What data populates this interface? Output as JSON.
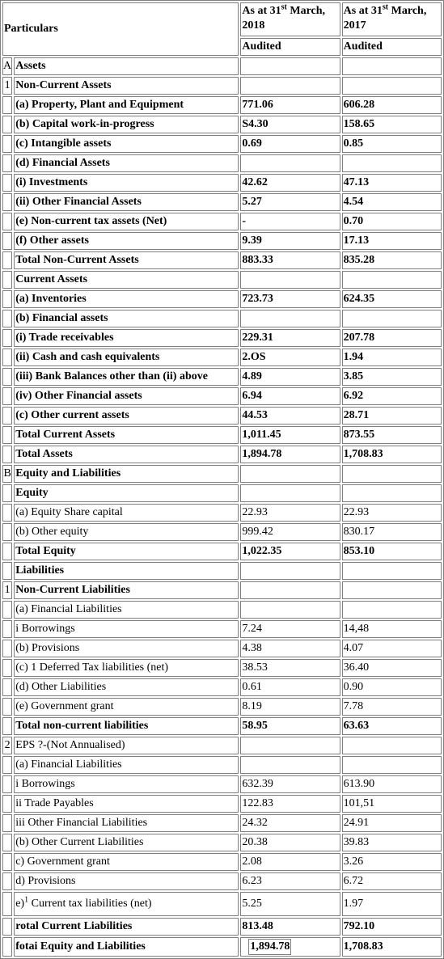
{
  "header": {
    "particulars": "Particulars",
    "col1_prefix": "As at 31",
    "col1_sup": "st",
    "col1_suffix": " March, 2018",
    "col2_prefix": "As at 31",
    "col2_sup": "st",
    "col2_suffix": " March, 2017",
    "audited1": "Audited",
    "audited2": "Audited"
  },
  "rows": [
    {
      "sr": "A",
      "label": "Assets",
      "v1": "",
      "v2": "",
      "bold": true
    },
    {
      "sr": "1",
      "label": "Non-Current Assets",
      "v1": "",
      "v2": "",
      "bold": true
    },
    {
      "sr": "",
      "label": "(a) Property, Plant and Equipment",
      "v1": "771.06",
      "v2": "606.28",
      "bold": true
    },
    {
      "sr": "",
      "label": "(b) Capital work-in-progress",
      "v1": "S4.30",
      "v2": "158.65",
      "bold": true
    },
    {
      "sr": "",
      "label": "(c) Intangible assets",
      "v1": "0.69",
      "v2": "0.85",
      "bold": true
    },
    {
      "sr": "",
      "label": "(d) Financial Assets",
      "v1": "",
      "v2": "",
      "bold": true
    },
    {
      "sr": "",
      "label": "(i) Investments",
      "v1": "42.62",
      "v2": "47.13",
      "bold": true
    },
    {
      "sr": "",
      "label": "(ii) Other Financial Assets",
      "v1": "5.27",
      "v2": "4.54",
      "bold": true
    },
    {
      "sr": "",
      "label": "(e) Non-current tax assets (Net)",
      "v1": "-",
      "v2": "0.70",
      "bold": true
    },
    {
      "sr": "",
      "label": "(f) Other assets",
      "v1": "9.39",
      "v2": "17.13",
      "bold": true
    },
    {
      "sr": "",
      "label": "Total Non-Current Assets",
      "v1": "883.33",
      "v2": "835.28",
      "bold": true
    },
    {
      "sr": "",
      "label": "Current Assets",
      "v1": "",
      "v2": "",
      "bold": true
    },
    {
      "sr": "",
      "label": "(a) Inventories",
      "v1": "723.73",
      "v2": "624.35",
      "bold": true
    },
    {
      "sr": "",
      "label": "(b) Financial assets",
      "v1": "",
      "v2": "",
      "bold": true
    },
    {
      "sr": "",
      "label": "(i) Trade receivables",
      "v1": "229.31",
      "v2": "207.78",
      "bold": true
    },
    {
      "sr": "",
      "label": "(ii) Cash and cash equivalents",
      "v1": "2.OS",
      "v2": "1.94",
      "bold": true
    },
    {
      "sr": "",
      "label": "(iii) Bank Balances other than (ii) above",
      "v1": "4.89",
      "v2": "3.85",
      "bold": true
    },
    {
      "sr": "",
      "label": "(iv) Other Financial assets",
      "v1": "6.94",
      "v2": "6.92",
      "bold": true
    },
    {
      "sr": "",
      "label": "(c) Other current assets",
      "v1": "44.53",
      "v2": "28.71",
      "bold": true
    },
    {
      "sr": "",
      "label": "Total Current Assets",
      "v1": "1,011.45",
      "v2": "873.55",
      "bold": true
    },
    {
      "sr": "",
      "label": "Total Assets",
      "v1": "1,894.78",
      "v2": "1,708.83",
      "bold": true
    },
    {
      "sr": "B",
      "label": "Equity and Liabilities",
      "v1": "",
      "v2": "",
      "bold": true
    },
    {
      "sr": "",
      "label": "Equity",
      "v1": "",
      "v2": "",
      "bold": true
    },
    {
      "sr": "",
      "label": "(a) Equity Share capital",
      "v1": "22.93",
      "v2": "22.93",
      "bold": false
    },
    {
      "sr": "",
      "label": "(b) Other equity",
      "v1": "999.42",
      "v2": "830.17",
      "bold": false
    },
    {
      "sr": "",
      "label": "Total Equity",
      "v1": "1,022.35",
      "v2": "853.10",
      "bold": true
    },
    {
      "sr": "",
      "label": "Liabilities",
      "v1": "",
      "v2": "",
      "bold": true
    },
    {
      "sr": "1",
      "label": "Non-Current Liabilities",
      "v1": "",
      "v2": "",
      "bold": true
    },
    {
      "sr": "",
      "label": "(a) Financial Liabilities",
      "v1": "",
      "v2": "",
      "bold": false
    },
    {
      "sr": "",
      "label": "i Borrowings",
      "v1": "7.24",
      "v2": "14,48",
      "bold": false
    },
    {
      "sr": "",
      "label": "(b) Provisions",
      "v1": "4.38",
      "v2": "4.07",
      "bold": false
    },
    {
      "sr": "",
      "label": "(c) 1 Deferred Tax liabilities (net)",
      "v1": "38.53",
      "v2": "36.40",
      "bold": false
    },
    {
      "sr": "",
      "label": "(d) Other Liabilities",
      "v1": "0.61",
      "v2": "0.90",
      "bold": false
    },
    {
      "sr": "",
      "label": "(e) Government grant",
      "v1": "8.19",
      "v2": "7.78",
      "bold": false
    },
    {
      "sr": "",
      "label": "Total non-current liabilities",
      "v1": "58.95",
      "v2": "63.63",
      "bold": true
    },
    {
      "sr": "2",
      "label": "EPS ?-(Not Annualised)",
      "v1": "",
      "v2": "",
      "bold": false
    },
    {
      "sr": "",
      "label": "(a) Financial Liabilities",
      "v1": "",
      "v2": "",
      "bold": false
    },
    {
      "sr": "",
      "label": "i Borrowings",
      "v1": "632.39",
      "v2": "613.90",
      "bold": false
    },
    {
      "sr": "",
      "label": "ii Trade Payables",
      "v1": "122.83",
      "v2": "101,51",
      "bold": false
    },
    {
      "sr": "",
      "label": "iii Other Financial Liabilities",
      "v1": "24.32",
      "v2": "24.91",
      "bold": false
    },
    {
      "sr": "",
      "label": "(b) Other Current Liabilities",
      "v1": "20.38",
      "v2": "39.83",
      "bold": false
    },
    {
      "sr": "",
      "label": "c) Government grant",
      "v1": "2.08",
      "v2": "3.26",
      "bold": false
    },
    {
      "sr": "",
      "label": "d) Provisions",
      "v1": "6.23",
      "v2": "6.72",
      "bold": false
    },
    {
      "sr": "",
      "label": "e)",
      "label_sup": "1",
      "label_rest": " Current tax liabilities (net)",
      "v1": "5.25",
      "v2": "1.97",
      "bold": false,
      "tall": true
    },
    {
      "sr": "",
      "label": "rotal Current Liabilities",
      "v1": "813.48",
      "v2": "792.10",
      "bold": true
    },
    {
      "sr": "",
      "label": "fotai Equity and Liabilities",
      "v1": "1,894.78",
      "v2": "1,708.83",
      "bold": true,
      "boxed_v1": true
    }
  ]
}
